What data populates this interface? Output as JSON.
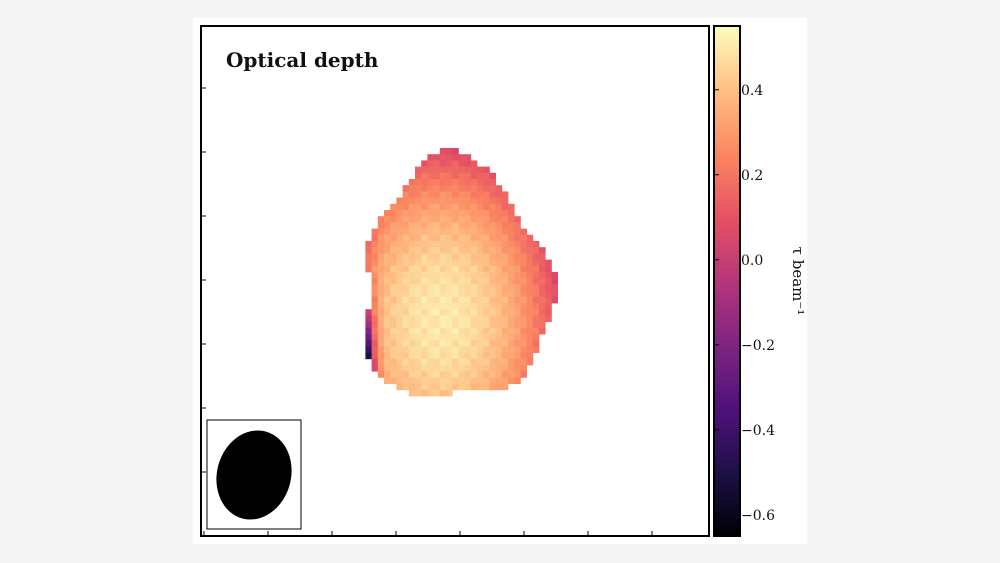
{
  "chart_data": {
    "type": "heatmap",
    "title": "Optical depth",
    "colormap": "magma",
    "colorbar": {
      "label": "τ beam⁻¹",
      "range": [
        -0.65,
        0.55
      ],
      "ticks": [
        0.4,
        0.2,
        0.0,
        -0.2,
        -0.4,
        -0.6
      ],
      "tick_labels": [
        "0.4",
        "0.2",
        "0.0",
        "−0.2",
        "−0.4",
        "−0.6"
      ]
    },
    "map": {
      "description_values": "optical depth per pixel, mostly 0.2–0.5, minimum about -0.65 at the lower-left edge",
      "max_value": 0.5,
      "min_value": -0.65
    },
    "beam": {
      "shape": "ellipse",
      "fill": "#000000"
    },
    "grid": false
  }
}
